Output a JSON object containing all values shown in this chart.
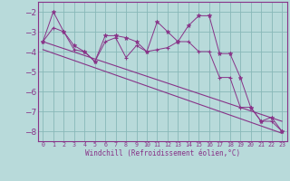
{
  "xlabel": "Windchill (Refroidissement éolien,°C)",
  "xlim": [
    -0.5,
    23.5
  ],
  "ylim": [
    -8.5,
    -1.5
  ],
  "yticks": [
    -8,
    -7,
    -6,
    -5,
    -4,
    -3,
    -2
  ],
  "xticks": [
    0,
    1,
    2,
    3,
    4,
    5,
    6,
    7,
    8,
    9,
    10,
    11,
    12,
    13,
    14,
    15,
    16,
    17,
    18,
    19,
    20,
    21,
    22,
    23
  ],
  "line_color": "#883388",
  "bg_color": "#b8dada",
  "grid_color": "#88b8b8",
  "series_star": {
    "x": [
      0,
      1,
      2,
      3,
      4,
      5,
      6,
      7,
      8,
      9,
      10,
      11,
      12,
      13,
      14,
      15,
      16,
      17,
      18,
      19,
      20,
      21,
      22,
      23
    ],
    "y": [
      -3.5,
      -2.0,
      -3.0,
      -3.7,
      -4.0,
      -4.5,
      -3.2,
      -3.2,
      -3.3,
      -3.5,
      -4.0,
      -2.5,
      -3.0,
      -3.5,
      -2.7,
      -2.2,
      -2.2,
      -4.1,
      -4.1,
      -5.3,
      -6.8,
      -7.5,
      -7.3,
      -8.0
    ]
  },
  "series_plus": {
    "x": [
      0,
      1,
      2,
      3,
      4,
      5,
      6,
      7,
      8,
      9,
      10,
      11,
      12,
      13,
      14,
      15,
      16,
      17,
      18,
      19,
      20,
      21,
      22,
      23
    ],
    "y": [
      -3.5,
      -2.8,
      -3.0,
      -3.9,
      -4.0,
      -4.5,
      -3.5,
      -3.3,
      -4.3,
      -3.7,
      -4.0,
      -3.9,
      -3.8,
      -3.5,
      -3.5,
      -4.0,
      -4.0,
      -5.3,
      -5.3,
      -6.8,
      -6.8,
      -7.5,
      -7.5,
      -8.0
    ]
  },
  "trend_upper": {
    "x": [
      0,
      23
    ],
    "y": [
      -3.5,
      -7.5
    ]
  },
  "trend_lower": {
    "x": [
      0,
      23
    ],
    "y": [
      -3.9,
      -8.1
    ]
  }
}
